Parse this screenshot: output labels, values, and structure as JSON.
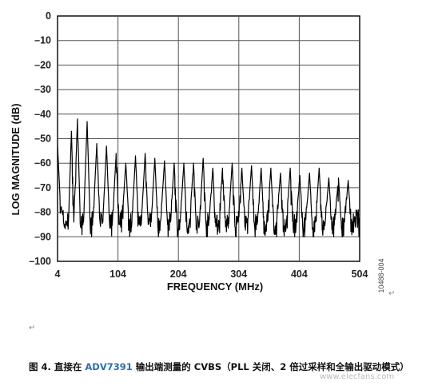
{
  "chart_data": {
    "type": "line",
    "title": "",
    "xlabel": "FREQUENCY (MHz)",
    "ylabel": "LOG MAGNITUDE (dB)",
    "xlim": [
      4,
      504
    ],
    "ylim": [
      -100,
      0
    ],
    "x_ticks": [
      4,
      104,
      204,
      304,
      404,
      504
    ],
    "y_ticks": [
      0,
      -10,
      -20,
      -30,
      -40,
      -50,
      -60,
      -70,
      -80,
      -90,
      -100
    ],
    "grid": true,
    "legend": "none",
    "noise_floor_db": -85,
    "series": [
      {
        "color": "#000000",
        "x": [
          4,
          9,
          16,
          22,
          27,
          31,
          37,
          42,
          47,
          53,
          58,
          63,
          69,
          74,
          79,
          85,
          90,
          95,
          101,
          106,
          111,
          117,
          122,
          127,
          133,
          138,
          143,
          149,
          154,
          159,
          165,
          170,
          175,
          181,
          186,
          191,
          197,
          202,
          207,
          213,
          218,
          223,
          229,
          234,
          239,
          245,
          250,
          255,
          261,
          266,
          271,
          277,
          282,
          287,
          293,
          298,
          303,
          309,
          314,
          319,
          325,
          330,
          335,
          341,
          346,
          351,
          357,
          362,
          367,
          373,
          378,
          383,
          389,
          394,
          399,
          405,
          410,
          415,
          421,
          426,
          431,
          437,
          442,
          447,
          453,
          458,
          463,
          469,
          474,
          479,
          485,
          490,
          495,
          501,
          504
        ],
        "y": [
          -53,
          -78,
          -85,
          -84,
          -47,
          -84,
          -42,
          -86,
          -84,
          -43,
          -85,
          -82,
          -52,
          -83,
          -84,
          -53,
          -84,
          -83,
          -56,
          -85,
          -82,
          -60,
          -84,
          -84,
          -57,
          -85,
          -83,
          -56,
          -85,
          -84,
          -58,
          -86,
          -83,
          -59,
          -85,
          -84,
          -60,
          -86,
          -84,
          -60,
          -86,
          -83,
          -60,
          -86,
          -84,
          -58,
          -86,
          -83,
          -62,
          -86,
          -84,
          -62,
          -86,
          -83,
          -60,
          -86,
          -84,
          -62,
          -86,
          -83,
          -61,
          -86,
          -84,
          -62,
          -87,
          -84,
          -62,
          -87,
          -83,
          -64,
          -87,
          -84,
          -62,
          -86,
          -84,
          -65,
          -87,
          -83,
          -64,
          -87,
          -84,
          -62,
          -87,
          -84,
          -66,
          -87,
          -83,
          -66,
          -87,
          -84,
          -67,
          -86,
          -84,
          -80,
          -86
        ]
      }
    ]
  },
  "figure": {
    "side_code": "10488-004",
    "paragraph_mark": "↵"
  },
  "caption": {
    "prefix": "图 4. 直接在 ",
    "part_name": "ADV7391",
    "suffix": " 输出端测量的 CVBS（PLL 关闭、2 倍过采样和全输出驱动模式）"
  },
  "watermark": "www.elecfans.com"
}
